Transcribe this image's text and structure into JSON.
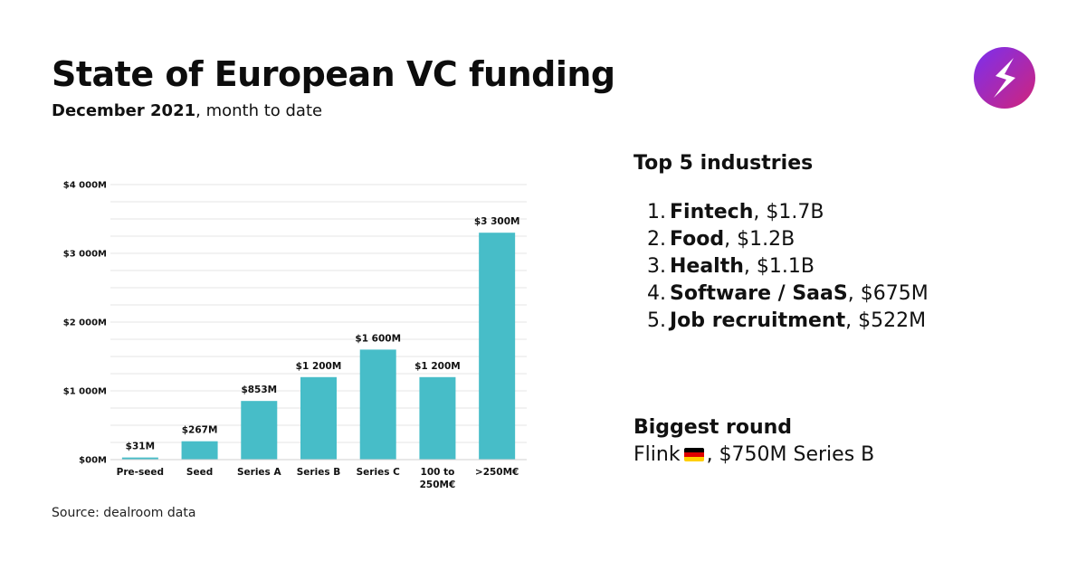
{
  "header": {
    "title": "State of European VC funding",
    "subtitle_bold": "December 2021",
    "subtitle_rest": ", month to date"
  },
  "logo": {
    "icon": "lightning-s-logo-icon",
    "gradient_from": "#7a2ff0",
    "gradient_to": "#d1247a"
  },
  "chart_data": {
    "type": "bar",
    "title": "",
    "xlabel": "",
    "ylabel": "",
    "categories": [
      [
        "Pre-seed"
      ],
      [
        "Seed"
      ],
      [
        "Series A"
      ],
      [
        "Series B"
      ],
      [
        "Series C"
      ],
      [
        "100 to",
        "250M€"
      ],
      [
        ">250M€"
      ]
    ],
    "values": [
      31,
      267,
      853,
      1200,
      1600,
      1200,
      3300
    ],
    "value_labels": [
      "$31M",
      "$267M",
      "$853M",
      "$1 200M",
      "$1 600M",
      "$1 200M",
      "$3 300M"
    ],
    "ylim": [
      0,
      4000
    ],
    "yticks": [
      0,
      1000,
      2000,
      3000,
      4000
    ],
    "ytick_labels": [
      "$00M",
      "$1 000M",
      "$2 000M",
      "$3 000M",
      "$4 000M"
    ],
    "grid": true,
    "bar_color": "#47bdc8"
  },
  "source": "Source: dealroom data",
  "industries": {
    "heading": "Top 5 industries",
    "items": [
      {
        "num": "1.",
        "name": "Fintech",
        "value": ", $1.7B"
      },
      {
        "num": "2.",
        "name": "Food",
        "value": ", $1.2B"
      },
      {
        "num": "3.",
        "name": "Health",
        "value": ", $1.1B"
      },
      {
        "num": "4.",
        "name": "Software / SaaS",
        "value": ", $675M"
      },
      {
        "num": "5.",
        "name": "Job recruitment",
        "value": ", $522M"
      }
    ]
  },
  "biggest_round": {
    "heading": "Biggest round",
    "company": "Flink",
    "flag_icon": "germany-flag-icon",
    "detail": ", $750M Series B"
  }
}
